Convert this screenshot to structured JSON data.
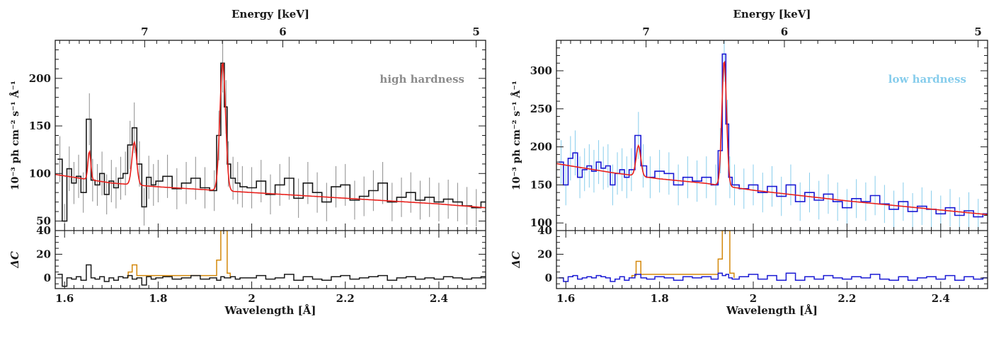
{
  "chart_data": [
    {
      "type": "line",
      "annotation": "high hardness",
      "annotation_color": "#8c8c8c",
      "data_color": "#1a1a1a",
      "error_color": "#8c8c8c",
      "model_color": "#e8201c",
      "residual_color": "#1a1a1a",
      "line_residual_color": "#d4880a",
      "xlabel": "Wavelength [Å]",
      "ylabel": "10⁻³ ph cm⁻² s⁻¹ Å⁻¹",
      "top_xlabel": "Energy [keV]",
      "residual_ylabel": "ΔC",
      "xlim": [
        1.58,
        2.5
      ],
      "ylim": [
        40,
        240
      ],
      "residual_ylim": [
        -9,
        40
      ],
      "x_ticks": [
        1.6,
        1.8,
        2.0,
        2.2,
        2.4
      ],
      "x_tick_labels": [
        "1.6",
        "1.8",
        "2",
        "2.2",
        "2.4"
      ],
      "y_ticks": [
        50,
        100,
        150,
        200
      ],
      "y_tick_labels": [
        "50",
        "100",
        "150",
        "200"
      ],
      "residual_y_ticks": [
        0,
        20,
        40
      ],
      "residual_y_tick_labels": [
        "0",
        "20",
        "40"
      ],
      "top_ticks_keV": [
        7,
        6,
        5
      ],
      "top_tick_labels": [
        "7",
        "6",
        "5"
      ],
      "continuum": [
        [
          1.58,
          99
        ],
        [
          1.7,
          90
        ],
        [
          1.8,
          86
        ],
        [
          2.0,
          80
        ],
        [
          2.2,
          74
        ],
        [
          2.4,
          68
        ],
        [
          2.5,
          64
        ]
      ],
      "lines": [
        {
          "center": 1.653,
          "amp": 30,
          "sigma": 0.003
        },
        {
          "center": 1.749,
          "amp": 45,
          "sigma": 0.005
        },
        {
          "center": 1.938,
          "amp": 135,
          "sigma": 0.006
        }
      ],
      "spectrum_x": [
        1.59,
        1.6,
        1.61,
        1.62,
        1.63,
        1.64,
        1.653,
        1.66,
        1.67,
        1.68,
        1.69,
        1.7,
        1.71,
        1.72,
        1.73,
        1.74,
        1.749,
        1.76,
        1.77,
        1.78,
        1.79,
        1.8,
        1.82,
        1.84,
        1.86,
        1.88,
        1.9,
        1.92,
        1.93,
        1.938,
        1.945,
        1.95,
        1.96,
        1.97,
        1.98,
        2.0,
        2.02,
        2.04,
        2.06,
        2.08,
        2.1,
        2.12,
        2.14,
        2.16,
        2.18,
        2.2,
        2.22,
        2.24,
        2.26,
        2.28,
        2.3,
        2.32,
        2.34,
        2.36,
        2.38,
        2.4,
        2.42,
        2.44,
        2.46,
        2.48,
        2.5
      ],
      "spectrum_y": [
        115,
        50,
        105,
        90,
        97,
        80,
        157,
        93,
        88,
        100,
        78,
        92,
        85,
        95,
        100,
        130,
        148,
        110,
        65,
        96,
        88,
        92,
        97,
        84,
        90,
        95,
        85,
        82,
        140,
        216,
        170,
        110,
        95,
        90,
        86,
        85,
        92,
        78,
        88,
        95,
        74,
        90,
        80,
        70,
        86,
        88,
        72,
        76,
        82,
        90,
        70,
        75,
        80,
        72,
        75,
        70,
        73,
        70,
        66,
        64,
        70
      ],
      "residual_x": [
        1.59,
        1.6,
        1.61,
        1.62,
        1.63,
        1.64,
        1.653,
        1.66,
        1.67,
        1.68,
        1.69,
        1.7,
        1.71,
        1.72,
        1.73,
        1.74,
        1.749,
        1.76,
        1.77,
        1.78,
        1.79,
        1.8,
        1.82,
        1.84,
        1.86,
        1.88,
        1.9,
        1.92,
        1.93,
        1.938,
        1.945,
        1.95,
        1.96,
        1.97,
        1.98,
        2.0,
        2.02,
        2.04,
        2.06,
        2.08,
        2.1,
        2.12,
        2.14,
        2.16,
        2.18,
        2.2,
        2.22,
        2.24,
        2.26,
        2.28,
        2.3,
        2.32,
        2.34,
        2.36,
        2.38,
        2.4,
        2.42,
        2.44,
        2.46,
        2.48,
        2.5
      ],
      "residual_y": [
        3,
        -7,
        0,
        -1,
        1,
        -2,
        11,
        0,
        -1,
        1,
        -3,
        0,
        -2,
        1,
        0,
        2,
        -1,
        0,
        -6,
        1,
        -1,
        0,
        1,
        -1,
        0,
        2,
        -1,
        0,
        -2,
        1,
        0,
        0,
        1,
        -1,
        0,
        0,
        2,
        -1,
        0,
        3,
        -2,
        1,
        -1,
        -2,
        1,
        2,
        -1,
        0,
        1,
        2,
        -2,
        0,
        1,
        -1,
        0,
        -1,
        1,
        0,
        -1,
        0,
        1
      ],
      "line_residual_x": [
        1.74,
        1.749,
        1.76,
        1.92,
        1.93,
        1.938,
        1.945,
        1.95
      ],
      "line_residual_y": [
        5,
        11,
        2,
        2,
        15,
        40,
        40,
        4
      ]
    },
    {
      "type": "line",
      "annotation": "low hardness",
      "annotation_color": "#87cdec",
      "data_color": "#1a1ad4",
      "error_color": "#87cdec",
      "model_color": "#e8201c",
      "residual_color": "#1a1ad4",
      "line_residual_color": "#d4880a",
      "xlabel": "Wavelength [Å]",
      "ylabel": "10⁻³ ph cm⁻² s⁻¹ Å⁻¹",
      "top_xlabel": "Energy [keV]",
      "residual_ylabel": "ΔC",
      "xlim": [
        1.58,
        2.5
      ],
      "ylim": [
        90,
        340
      ],
      "residual_ylim": [
        -9,
        40
      ],
      "x_ticks": [
        1.6,
        1.8,
        2.0,
        2.2,
        2.4
      ],
      "x_tick_labels": [
        "1.6",
        "1.8",
        "2",
        "2.2",
        "2.4"
      ],
      "y_ticks": [
        100,
        150,
        200,
        250,
        300
      ],
      "y_tick_labels": [
        "100",
        "150",
        "200",
        "250",
        "300"
      ],
      "residual_y_ticks": [
        0,
        20,
        40
      ],
      "residual_y_tick_labels": [
        "0",
        "20",
        "40"
      ],
      "top_ticks_keV": [
        7,
        6,
        5
      ],
      "top_tick_labels": [
        "7",
        "6",
        "5"
      ],
      "continuum": [
        [
          1.58,
          178
        ],
        [
          1.7,
          166
        ],
        [
          1.8,
          158
        ],
        [
          1.9,
          152
        ],
        [
          2.0,
          143
        ],
        [
          2.2,
          129
        ],
        [
          2.4,
          117
        ],
        [
          2.5,
          111
        ]
      ],
      "lines": [
        {
          "center": 1.755,
          "amp": 40,
          "sigma": 0.005
        },
        {
          "center": 1.938,
          "amp": 165,
          "sigma": 0.005
        }
      ],
      "spectrum_x": [
        1.59,
        1.6,
        1.61,
        1.62,
        1.63,
        1.64,
        1.65,
        1.66,
        1.67,
        1.68,
        1.69,
        1.7,
        1.71,
        1.72,
        1.73,
        1.74,
        1.755,
        1.765,
        1.78,
        1.8,
        1.82,
        1.84,
        1.86,
        1.88,
        1.9,
        1.92,
        1.93,
        1.938,
        1.945,
        1.95,
        1.96,
        1.98,
        2.0,
        2.02,
        2.04,
        2.06,
        2.08,
        2.1,
        2.12,
        2.14,
        2.16,
        2.18,
        2.2,
        2.22,
        2.24,
        2.26,
        2.28,
        2.3,
        2.32,
        2.34,
        2.36,
        2.38,
        2.4,
        2.42,
        2.44,
        2.46,
        2.48,
        2.5
      ],
      "spectrum_y": [
        180,
        150,
        185,
        192,
        160,
        170,
        175,
        168,
        180,
        172,
        175,
        150,
        165,
        170,
        160,
        170,
        215,
        175,
        160,
        168,
        165,
        150,
        160,
        155,
        160,
        150,
        195,
        322,
        230,
        160,
        150,
        145,
        150,
        140,
        148,
        135,
        150,
        128,
        140,
        130,
        138,
        128,
        120,
        132,
        128,
        136,
        125,
        118,
        128,
        115,
        122,
        118,
        112,
        120,
        110,
        116,
        108,
        112
      ],
      "residual_x": [
        1.59,
        1.6,
        1.61,
        1.62,
        1.63,
        1.64,
        1.65,
        1.66,
        1.67,
        1.68,
        1.69,
        1.7,
        1.71,
        1.72,
        1.73,
        1.74,
        1.755,
        1.765,
        1.78,
        1.8,
        1.82,
        1.84,
        1.86,
        1.88,
        1.9,
        1.92,
        1.93,
        1.938,
        1.945,
        1.95,
        1.96,
        1.98,
        2.0,
        2.02,
        2.04,
        2.06,
        2.08,
        2.1,
        2.12,
        2.14,
        2.16,
        2.18,
        2.2,
        2.22,
        2.24,
        2.26,
        2.28,
        2.3,
        2.32,
        2.34,
        2.36,
        2.38,
        2.4,
        2.42,
        2.44,
        2.46,
        2.48,
        2.5
      ],
      "residual_y": [
        0,
        -3,
        1,
        2,
        -1,
        0,
        1,
        0,
        2,
        1,
        0,
        -3,
        -1,
        1,
        -2,
        0,
        3,
        0,
        -1,
        1,
        0,
        -2,
        1,
        0,
        1,
        -1,
        4,
        2,
        3,
        0,
        -1,
        1,
        3,
        -1,
        2,
        -2,
        4,
        -2,
        1,
        -1,
        2,
        0,
        -1,
        1,
        0,
        3,
        -1,
        -2,
        1,
        -2,
        0,
        1,
        -1,
        2,
        -2,
        1,
        -1,
        0
      ],
      "line_residual_x": [
        1.745,
        1.755,
        1.765,
        1.92,
        1.93,
        1.938,
        1.945,
        1.955
      ],
      "line_residual_y": [
        2,
        14,
        3,
        3,
        16,
        40,
        40,
        4
      ]
    }
  ]
}
